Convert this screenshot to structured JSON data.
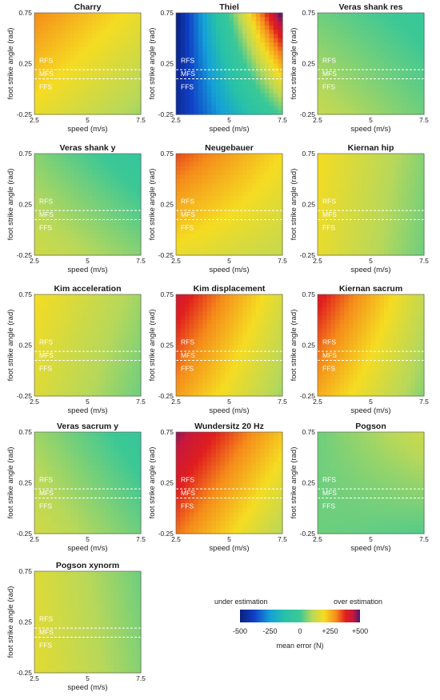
{
  "chart_data": {
    "type": "heatmap",
    "figure": "Mean error of GRF estimation methods as function of running speed and foot strike angle",
    "xlabel": "speed (m/s)",
    "ylabel": "foot strike angle (rad)",
    "x_ticks": [
      "2.5",
      "5",
      "7.5"
    ],
    "y_ticks": [
      "0.75",
      "0.25",
      "-0.25"
    ],
    "xlim": [
      2.5,
      7.5
    ],
    "ylim": [
      -0.25,
      0.75
    ],
    "zone_labels": [
      "RFS",
      "MFS",
      "FFS"
    ],
    "zone_boundaries": [
      0.19,
      0.1
    ],
    "colorbar": {
      "label": "mean error (N)",
      "ticks": [
        "-500",
        "-250",
        "0",
        "+250",
        "+500"
      ],
      "range": [
        -500,
        500
      ],
      "left_caption": "under estimation",
      "right_caption": "over estimation"
    },
    "panels": [
      {
        "title": "Charry",
        "a": 180,
        "b": 80,
        "c": 300,
        "d": 180
      },
      {
        "title": "Thiel",
        "a": -450,
        "b": 20,
        "c": -500,
        "d": 520
      },
      {
        "title": "Veras shank res",
        "a": 120,
        "b": 40,
        "c": 40,
        "d": -20
      },
      {
        "title": "Veras shank y",
        "a": 140,
        "b": 60,
        "c": 60,
        "d": -40
      },
      {
        "title": "Neugebauer",
        "a": 180,
        "b": 120,
        "c": 350,
        "d": 200
      },
      {
        "title": "Kiernan hip",
        "a": 180,
        "b": 40,
        "c": 200,
        "d": 60
      },
      {
        "title": "Kim acceleration",
        "a": 160,
        "b": 40,
        "c": 200,
        "d": 80
      },
      {
        "title": "Kim displacement",
        "a": 280,
        "b": 80,
        "c": 420,
        "d": 150
      },
      {
        "title": "Kiernan sacrum",
        "a": 260,
        "b": 60,
        "c": 400,
        "d": 120
      },
      {
        "title": "Veras sacrum y",
        "a": 140,
        "b": 40,
        "c": 80,
        "d": -30
      },
      {
        "title": "Wundersitz 20 Hz",
        "a": 320,
        "b": 100,
        "c": 470,
        "d": 230
      },
      {
        "title": "Pogson",
        "a": 40,
        "b": 20,
        "c": 40,
        "d": 130
      },
      {
        "title": "Pogson xynorm",
        "a": 170,
        "b": 60,
        "c": 160,
        "d": 40
      }
    ]
  }
}
